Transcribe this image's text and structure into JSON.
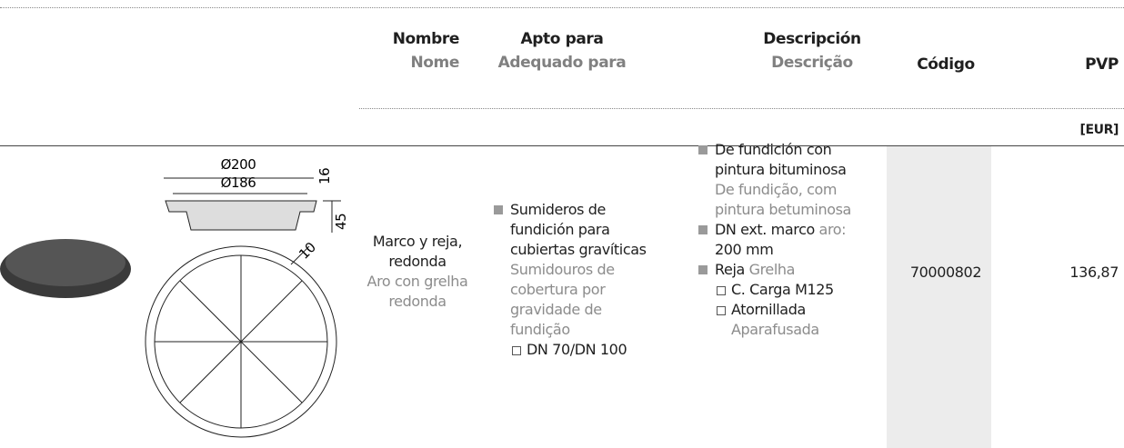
{
  "table": {
    "headers": [
      {
        "es": "Nombre",
        "pt": "Nome"
      },
      {
        "es": "Apto para",
        "pt": "Adequado para"
      },
      {
        "es": "Descripción",
        "pt": "Descrição"
      },
      {
        "es": "Código"
      },
      {
        "es": "PVP",
        "unit": "[EUR]"
      }
    ],
    "rows": [
      {
        "name": {
          "es": "Marco y reja, redonda",
          "pt": "Aro con grelha redonda"
        },
        "apto": {
          "es": "Sumideros de fundición para cubiertas gravíticas",
          "pt": "Sumidouros de cobertura por gravidade de fundição",
          "sub": "DN 70/DN 100"
        },
        "desc": [
          {
            "es": "De fundición con pintura bituminosa",
            "pt": "De fundição, com pintura betuminosa"
          },
          {
            "es": "DN ext. marco",
            "pt": "aro:",
            "value": "200 mm"
          },
          {
            "es": "Reja",
            "pt": "Grelha",
            "sub": [
              {
                "es": "C. Carga M125"
              },
              {
                "es": "Atornillada",
                "pt": "Aparafusada"
              }
            ]
          }
        ],
        "code": "70000802",
        "price": "136,87"
      }
    ]
  },
  "drawing": {
    "labels": [
      "Ø200",
      "Ø186",
      "16",
      "45",
      "10"
    ]
  }
}
